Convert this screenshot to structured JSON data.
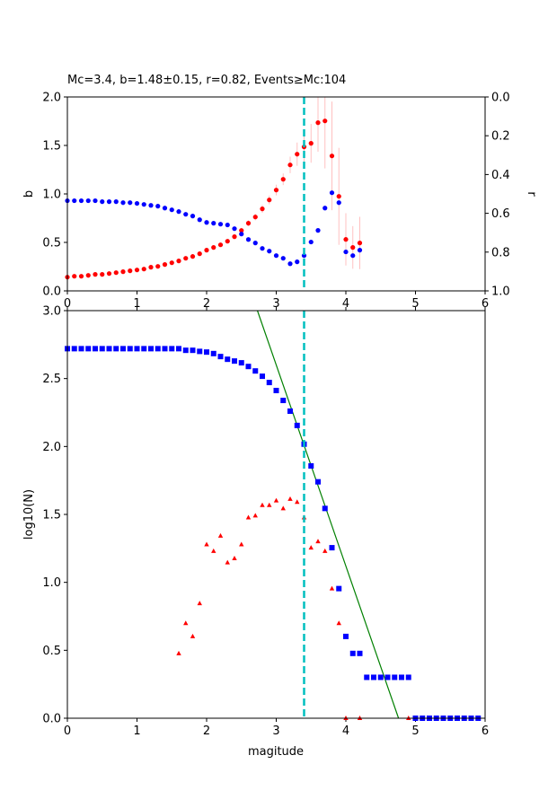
{
  "chart_data": [
    {
      "type": "scatter",
      "title": "Mc=3.4, b=1.48±0.15, r=0.82, Events≥Mc:104",
      "xlabel": "",
      "ylabel": "b",
      "ylabel_right": "r",
      "xlim": [
        0,
        6
      ],
      "ylim": [
        0,
        2.0
      ],
      "ylim_right": [
        1.0,
        0.0
      ],
      "xticks": [
        "0",
        "1",
        "2",
        "3",
        "4",
        "5",
        "6"
      ],
      "yticks": [
        "0.0",
        "0.5",
        "1.0",
        "1.5",
        "2.0"
      ],
      "yticks_right": [
        "0.0",
        "0.2",
        "0.4",
        "0.6",
        "0.8",
        "1.0"
      ],
      "mc_line": 3.4,
      "colors": {
        "b": "#ff0000",
        "r": "#0000ff",
        "err": "#ffc0c0",
        "mc": "#00bfbf"
      },
      "x": [
        0,
        0.1,
        0.2,
        0.3,
        0.4,
        0.5,
        0.6,
        0.7,
        0.8,
        0.9,
        1.0,
        1.1,
        1.2,
        1.3,
        1.4,
        1.5,
        1.6,
        1.7,
        1.8,
        1.9,
        2.0,
        2.1,
        2.2,
        2.3,
        2.4,
        2.5,
        2.6,
        2.7,
        2.8,
        2.9,
        3.0,
        3.1,
        3.2,
        3.3,
        3.4,
        3.5,
        3.6,
        3.7,
        3.8,
        3.9,
        4.0,
        4.1,
        4.2
      ],
      "series": [
        {
          "name": "b",
          "axis": "left",
          "values": [
            0.142,
            0.151,
            0.151,
            0.16,
            0.17,
            0.17,
            0.179,
            0.188,
            0.198,
            0.207,
            0.216,
            0.225,
            0.244,
            0.253,
            0.272,
            0.29,
            0.309,
            0.336,
            0.355,
            0.383,
            0.42,
            0.448,
            0.475,
            0.512,
            0.559,
            0.623,
            0.698,
            0.762,
            0.846,
            0.938,
            1.04,
            1.151,
            1.299,
            1.41,
            1.485,
            1.522,
            1.735,
            1.753,
            1.392,
            0.975,
            0.531,
            0.448,
            0.494
          ],
          "errors": [
            0.005,
            0.005,
            0.005,
            0.005,
            0.006,
            0.006,
            0.006,
            0.007,
            0.007,
            0.008,
            0.008,
            0.009,
            0.01,
            0.01,
            0.011,
            0.012,
            0.013,
            0.014,
            0.015,
            0.016,
            0.018,
            0.019,
            0.02,
            0.022,
            0.024,
            0.027,
            0.03,
            0.034,
            0.04,
            0.045,
            0.055,
            0.06,
            0.085,
            0.12,
            0.15,
            0.2,
            0.3,
            0.49,
            0.56,
            0.5,
            0.27,
            0.22,
            0.27
          ]
        },
        {
          "name": "r",
          "axis": "right",
          "values": [
            0.535,
            0.535,
            0.535,
            0.535,
            0.535,
            0.54,
            0.54,
            0.54,
            0.545,
            0.545,
            0.549,
            0.554,
            0.559,
            0.563,
            0.573,
            0.582,
            0.591,
            0.605,
            0.614,
            0.633,
            0.647,
            0.651,
            0.656,
            0.66,
            0.679,
            0.707,
            0.735,
            0.753,
            0.781,
            0.795,
            0.818,
            0.832,
            0.86,
            0.85,
            0.818,
            0.748,
            0.688,
            0.573,
            0.494,
            0.545,
            0.799,
            0.818,
            0.79
          ]
        }
      ]
    },
    {
      "type": "scatter",
      "xlabel": "magitude",
      "ylabel": "log10(N)",
      "xlim": [
        0,
        6
      ],
      "ylim": [
        0,
        3.0
      ],
      "xticks": [
        "0",
        "1",
        "2",
        "3",
        "4",
        "5",
        "6"
      ],
      "yticks": [
        "0.0",
        "0.5",
        "1.0",
        "1.5",
        "2.0",
        "2.5",
        "3.0"
      ],
      "mc_line": 3.4,
      "fit_line": {
        "a": 7.04,
        "b": 1.48,
        "color": "#008000"
      },
      "colors": {
        "cumulative": "#0000ff",
        "incremental": "#ff0000",
        "mc": "#00bfbf"
      },
      "series": [
        {
          "name": "cumulative",
          "marker": "square",
          "x": [
            0,
            0.1,
            0.2,
            0.3,
            0.4,
            0.5,
            0.6,
            0.7,
            0.8,
            0.9,
            1.0,
            1.1,
            1.2,
            1.3,
            1.4,
            1.5,
            1.6,
            1.7,
            1.8,
            1.9,
            2.0,
            2.1,
            2.2,
            2.3,
            2.4,
            2.5,
            2.6,
            2.7,
            2.8,
            2.9,
            3.0,
            3.1,
            3.2,
            3.3,
            3.4,
            3.5,
            3.6,
            3.7,
            3.8,
            3.9,
            4.0,
            4.1,
            4.2,
            4.3,
            4.4,
            4.5,
            4.6,
            4.7,
            4.8,
            4.9,
            5.0,
            5.1,
            5.2,
            5.3,
            5.4,
            5.5,
            5.6,
            5.7,
            5.8,
            5.9
          ],
          "values": [
            2.72,
            2.72,
            2.72,
            2.72,
            2.72,
            2.72,
            2.72,
            2.72,
            2.72,
            2.72,
            2.72,
            2.72,
            2.72,
            2.72,
            2.72,
            2.72,
            2.72,
            2.708,
            2.708,
            2.7,
            2.695,
            2.684,
            2.662,
            2.642,
            2.629,
            2.616,
            2.589,
            2.556,
            2.517,
            2.471,
            2.412,
            2.339,
            2.26,
            2.155,
            2.017,
            1.857,
            1.74,
            1.544,
            1.255,
            0.954,
            0.602,
            0.477,
            0.477,
            0.301,
            0.301,
            0.301,
            0.301,
            0.301,
            0.301,
            0.301,
            0,
            0,
            0,
            0,
            0,
            0,
            0,
            0,
            0,
            0
          ]
        },
        {
          "name": "incremental",
          "marker": "triangle",
          "x": [
            1.6,
            1.7,
            1.8,
            1.9,
            2.0,
            2.1,
            2.2,
            2.3,
            2.4,
            2.5,
            2.6,
            2.7,
            2.8,
            2.9,
            3.0,
            3.1,
            3.2,
            3.3,
            3.4,
            3.5,
            3.6,
            3.7,
            3.8,
            3.9,
            4.0,
            4.2,
            4.9
          ],
          "values": [
            0.477,
            0.699,
            0.602,
            0.845,
            1.279,
            1.23,
            1.342,
            1.146,
            1.176,
            1.279,
            1.477,
            1.491,
            1.568,
            1.568,
            1.602,
            1.544,
            1.613,
            1.591,
            1.477,
            1.255,
            1.301,
            1.23,
            0.954,
            0.699,
            0,
            0,
            0
          ]
        }
      ]
    }
  ]
}
